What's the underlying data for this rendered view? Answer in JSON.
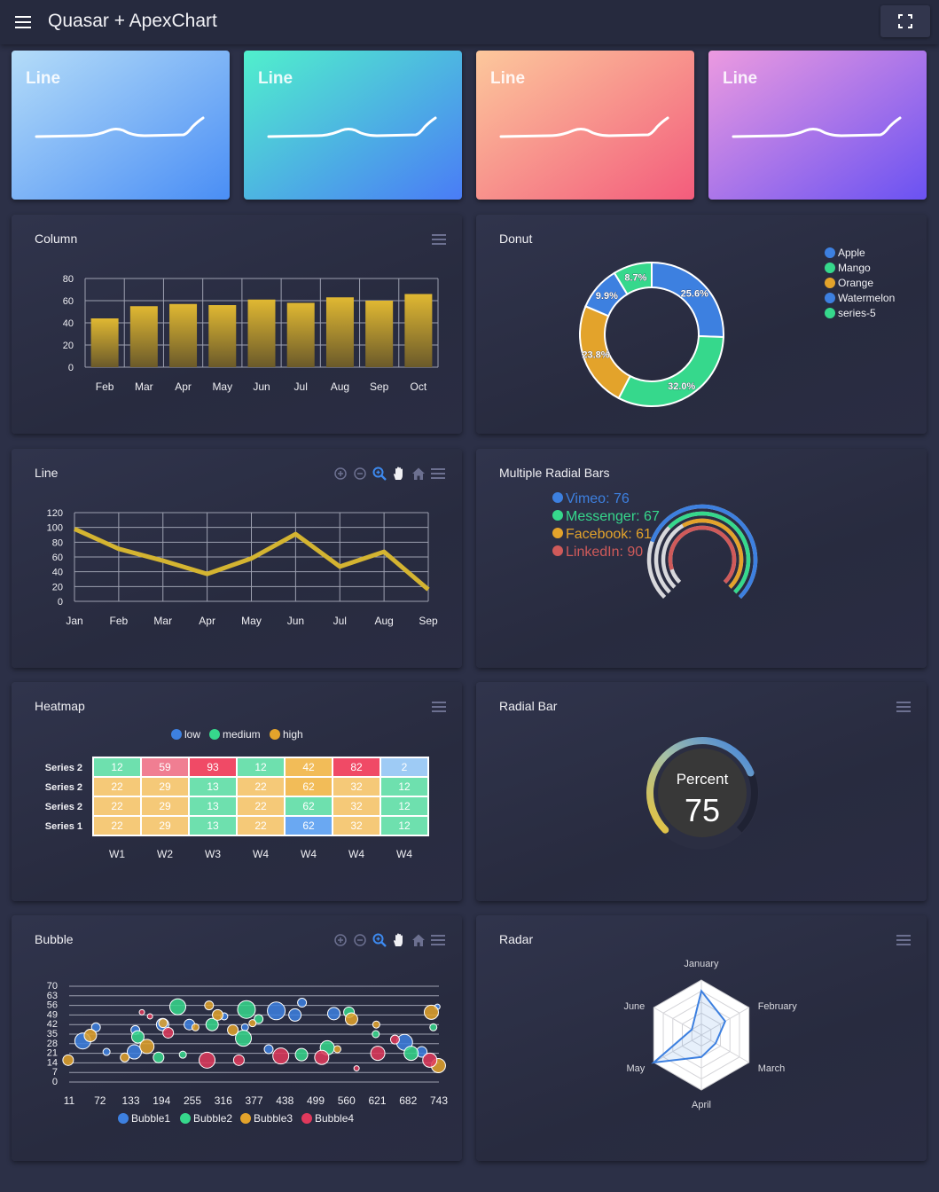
{
  "app": {
    "title": "Quasar + ApexChart"
  },
  "tiles": [
    {
      "title": "Line",
      "grad": [
        "#b4dcf8",
        "#4a8ef5"
      ]
    },
    {
      "title": "Line",
      "grad": [
        "#50f0cc",
        "#4a7cf6"
      ]
    },
    {
      "title": "Line",
      "grad": [
        "#fcc89c",
        "#f35c7c"
      ]
    },
    {
      "title": "Line",
      "grad": [
        "#ec9ae0",
        "#6a52f2"
      ]
    }
  ],
  "cards": {
    "column": {
      "title": "Column"
    },
    "donut": {
      "title": "Donut"
    },
    "line": {
      "title": "Line"
    },
    "radialbars": {
      "title": "Multiple Radial Bars"
    },
    "heatmap": {
      "title": "Heatmap"
    },
    "radialbar": {
      "title": "Radial Bar"
    },
    "bubble": {
      "title": "Bubble"
    },
    "radar": {
      "title": "Radar"
    }
  },
  "chart_data": [
    {
      "id": "column",
      "type": "bar",
      "categories": [
        "Feb",
        "Mar",
        "Apr",
        "May",
        "Jun",
        "Jul",
        "Aug",
        "Sep",
        "Oct"
      ],
      "values": [
        44,
        55,
        57,
        56,
        61,
        58,
        63,
        60,
        66
      ],
      "ylim": [
        0,
        80
      ],
      "yticks": [
        "80",
        "60",
        "40",
        "20",
        "0"
      ],
      "color": "#e0b832"
    },
    {
      "id": "donut",
      "type": "pie",
      "labels": [
        "Apple",
        "Mango",
        "Orange",
        "Watermelon",
        "series-5"
      ],
      "values": [
        25.6,
        32.0,
        23.8,
        9.9,
        8.7
      ],
      "display": [
        "25.6%",
        "32.0%",
        "23.8%",
        "9.9%",
        "8.7%"
      ],
      "colors": [
        "#3d80e0",
        "#36d88c",
        "#e3a32b",
        "#3d80e0",
        "#36d88c"
      ]
    },
    {
      "id": "line",
      "type": "line",
      "categories": [
        "Jan",
        "Feb",
        "Mar",
        "Apr",
        "May",
        "Jun",
        "Jul",
        "Aug",
        "Sep"
      ],
      "values": [
        98,
        71,
        55,
        37,
        58,
        91,
        47,
        67,
        16
      ],
      "ylim": [
        0,
        120
      ],
      "yticks": [
        "120",
        "100",
        "80",
        "60",
        "40",
        "20",
        "0"
      ],
      "color": "#d4b431"
    },
    {
      "id": "radialbars",
      "type": "radialbar",
      "series": [
        {
          "name": "Vimeo",
          "label": "Vimeo: 76",
          "value": 76,
          "color": "#3d80e0"
        },
        {
          "name": "Messenger",
          "label": "Messenger: 67",
          "value": 67,
          "color": "#36d88c"
        },
        {
          "name": "Facebook",
          "label": "Facebook: 61",
          "value": 61,
          "color": "#e3a32b"
        },
        {
          "name": "LinkedIn",
          "label": "LinkedIn: 90",
          "value": 90,
          "color": "#cf5a5a"
        }
      ]
    },
    {
      "id": "heatmap",
      "type": "heatmap",
      "legend": [
        {
          "name": "low",
          "color": "#3d80e0"
        },
        {
          "name": "medium",
          "color": "#36d88c"
        },
        {
          "name": "high",
          "color": "#e3a32b"
        }
      ],
      "columns": [
        "W1",
        "W2",
        "W3",
        "W4",
        "W4",
        "W4",
        "W4"
      ],
      "rows": [
        {
          "name": "Series 2",
          "values": [
            12,
            59,
            93,
            12,
            42,
            82,
            2
          ],
          "colors": [
            "#6ee0ae",
            "#f07e92",
            "#f04a66",
            "#6ee0ae",
            "#f2bc58",
            "#f04a66",
            "#9ecbf5"
          ]
        },
        {
          "name": "Series 2",
          "values": [
            22,
            29,
            13,
            22,
            62,
            32,
            12
          ],
          "colors": [
            "#f5c978",
            "#f5c978",
            "#6ee0ae",
            "#f5c978",
            "#f2bc58",
            "#f5c978",
            "#6ee0ae"
          ]
        },
        {
          "name": "Series 2",
          "values": [
            22,
            29,
            13,
            22,
            62,
            32,
            12
          ],
          "colors": [
            "#f5c978",
            "#f5c978",
            "#6ee0ae",
            "#f5c978",
            "#6ee0ae",
            "#f5c978",
            "#6ee0ae"
          ]
        },
        {
          "name": "Series 1",
          "values": [
            22,
            29,
            13,
            22,
            62,
            32,
            12
          ],
          "colors": [
            "#f5c978",
            "#f5c978",
            "#6ee0ae",
            "#f5c978",
            "#6aa8f2",
            "#f5c978",
            "#6ee0ae"
          ]
        }
      ]
    },
    {
      "id": "radialbar",
      "type": "radialbar",
      "label": "Percent",
      "value": 75,
      "display": "75"
    },
    {
      "id": "bubble",
      "type": "scatter",
      "xticks": [
        "11",
        "72",
        "133",
        "194",
        "255",
        "316",
        "377",
        "438",
        "499",
        "560",
        "621",
        "682",
        "743"
      ],
      "yticks": [
        "70",
        "63",
        "56",
        "49",
        "42",
        "35",
        "28",
        "21",
        "14",
        "7",
        "0"
      ],
      "xlim": [
        11,
        743
      ],
      "ylim": [
        0,
        70
      ],
      "series": [
        {
          "name": "Bubble1",
          "color": "#3d80e0",
          "points": [
            [
              38,
              30,
              9
            ],
            [
              64,
              40,
              5
            ],
            [
              85,
              22,
              4
            ],
            [
              140,
              22,
              8
            ],
            [
              142,
              38,
              5
            ],
            [
              196,
              42,
              7
            ],
            [
              249,
              42,
              6
            ],
            [
              318,
              48,
              4
            ],
            [
              359,
              40,
              4
            ],
            [
              406,
              24,
              5
            ],
            [
              421,
              52,
              10
            ],
            [
              458,
              49,
              7
            ],
            [
              472,
              58,
              5
            ],
            [
              535,
              50,
              7
            ],
            [
              675,
              29,
              9
            ],
            [
              709,
              22,
              6
            ],
            [
              740,
              55,
              3
            ]
          ]
        },
        {
          "name": "Bubble2",
          "color": "#36d88c",
          "points": [
            [
              147,
              33,
              7
            ],
            [
              188,
              18,
              6
            ],
            [
              226,
              55,
              9
            ],
            [
              236,
              20,
              4
            ],
            [
              294,
              42,
              7
            ],
            [
              356,
              32,
              9
            ],
            [
              362,
              53,
              10
            ],
            [
              386,
              46,
              5
            ],
            [
              471,
              20,
              7
            ],
            [
              522,
              25,
              8
            ],
            [
              565,
              51,
              6
            ],
            [
              618,
              35,
              4
            ],
            [
              688,
              21,
              8
            ],
            [
              732,
              40,
              4
            ]
          ]
        },
        {
          "name": "Bubble3",
          "color": "#e3a32b",
          "points": [
            [
              9,
              16,
              6
            ],
            [
              53,
              34,
              7
            ],
            [
              121,
              18,
              5
            ],
            [
              165,
              26,
              8
            ],
            [
              197,
              43,
              5
            ],
            [
              261,
              40,
              4
            ],
            [
              288,
              56,
              5
            ],
            [
              305,
              49,
              6
            ],
            [
              335,
              38,
              6
            ],
            [
              374,
              43,
              4
            ],
            [
              542,
              24,
              4
            ],
            [
              570,
              46,
              7
            ],
            [
              619,
              42,
              4
            ],
            [
              728,
              51,
              8
            ],
            [
              742,
              12,
              8
            ]
          ]
        },
        {
          "name": "Bubble4",
          "color": "#e0395c",
          "points": [
            [
              155,
              51,
              3
            ],
            [
              171,
              48,
              3
            ],
            [
              207,
              36,
              6
            ],
            [
              284,
              16,
              9
            ],
            [
              347,
              16,
              6
            ],
            [
              430,
              19,
              9
            ],
            [
              511,
              18,
              8
            ],
            [
              580,
              10,
              3
            ],
            [
              622,
              21,
              8
            ],
            [
              656,
              31,
              5
            ],
            [
              725,
              16,
              8
            ]
          ]
        }
      ]
    },
    {
      "id": "radar",
      "type": "radar",
      "categories": [
        "January",
        "February",
        "March",
        "April",
        "May",
        "June"
      ],
      "values": [
        80,
        50,
        30,
        40,
        100,
        20
      ],
      "max": 100,
      "color": "#3d80e0"
    }
  ]
}
